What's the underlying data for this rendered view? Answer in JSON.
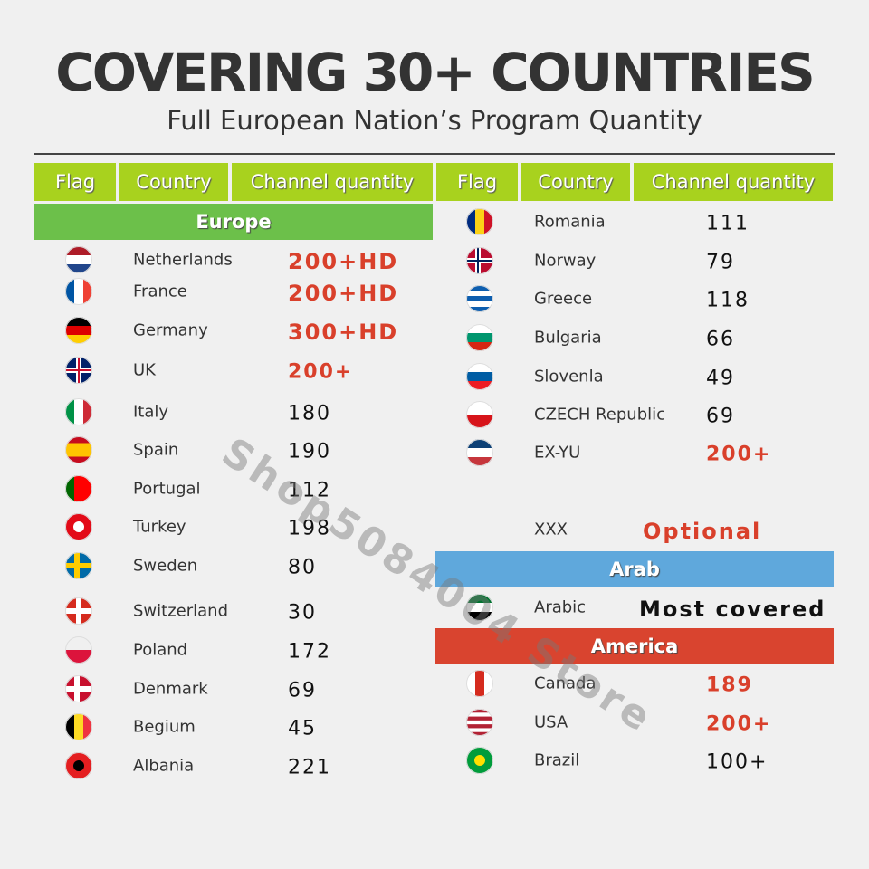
{
  "header": {
    "title": "COVERING 30+ COUNTRIES",
    "subtitle": "Full European Nation’s Program Quantity"
  },
  "left": {
    "columns": [
      "Flag",
      "Country",
      "Channel quantity"
    ],
    "sections": [
      {
        "name": "Europe",
        "color": "#6cc04a",
        "rows": [
          {
            "country": "Netherlands",
            "channels": "200+HD",
            "color": "#d9402b"
          },
          {
            "country": "France",
            "channels": "200+HD",
            "color": "#d9402b"
          },
          {
            "country": "Germany",
            "channels": "300+HD",
            "color": "#d9402b"
          },
          {
            "country": "UK",
            "channels": "200+",
            "color": "#d9402b"
          },
          {
            "country": "Italy",
            "channels": 180
          },
          {
            "country": "Spain",
            "channels": 190
          },
          {
            "country": "Portugal",
            "channels": 112
          },
          {
            "country": "Turkey",
            "channels": 198
          },
          {
            "country": "Sweden",
            "channels": 80
          },
          {
            "country": "Switzerland",
            "channels": 30
          },
          {
            "country": "Poland",
            "channels": 172
          },
          {
            "country": "Denmark",
            "channels": 69
          },
          {
            "country": "Begium",
            "channels": 45
          },
          {
            "country": "Albania",
            "channels": 221
          }
        ]
      }
    ]
  },
  "right": {
    "columns": [
      "Flag",
      "Country",
      "Channel quantity"
    ],
    "rows": [
      {
        "country": "Romania",
        "channels": 111
      },
      {
        "country": "Norway",
        "channels": 79
      },
      {
        "country": "Greece",
        "channels": 118
      },
      {
        "country": "Bulgaria",
        "channels": 66
      },
      {
        "country": "Slovenla",
        "channels": 49
      },
      {
        "country": "CZECH Republic",
        "channels": 69
      },
      {
        "country": "EX-YU",
        "channels": "200+",
        "color": "#d9402b"
      },
      {
        "country": "XXX",
        "channels": "Optional",
        "color": "#d9402b"
      }
    ],
    "sections": [
      {
        "name": "Arab",
        "color": "#5fa8dc",
        "rows": [
          {
            "country": "Arabic",
            "channels": "Most covered"
          }
        ]
      },
      {
        "name": "America",
        "color": "#d9442f",
        "rows": [
          {
            "country": "Canada",
            "channels": 189,
            "color": "#d9402b"
          },
          {
            "country": "USA",
            "channels": "200+",
            "color": "#d9402b"
          },
          {
            "country": "Brazil",
            "channels": "100+"
          }
        ]
      }
    ]
  },
  "watermark": "Shop5084004 Store"
}
